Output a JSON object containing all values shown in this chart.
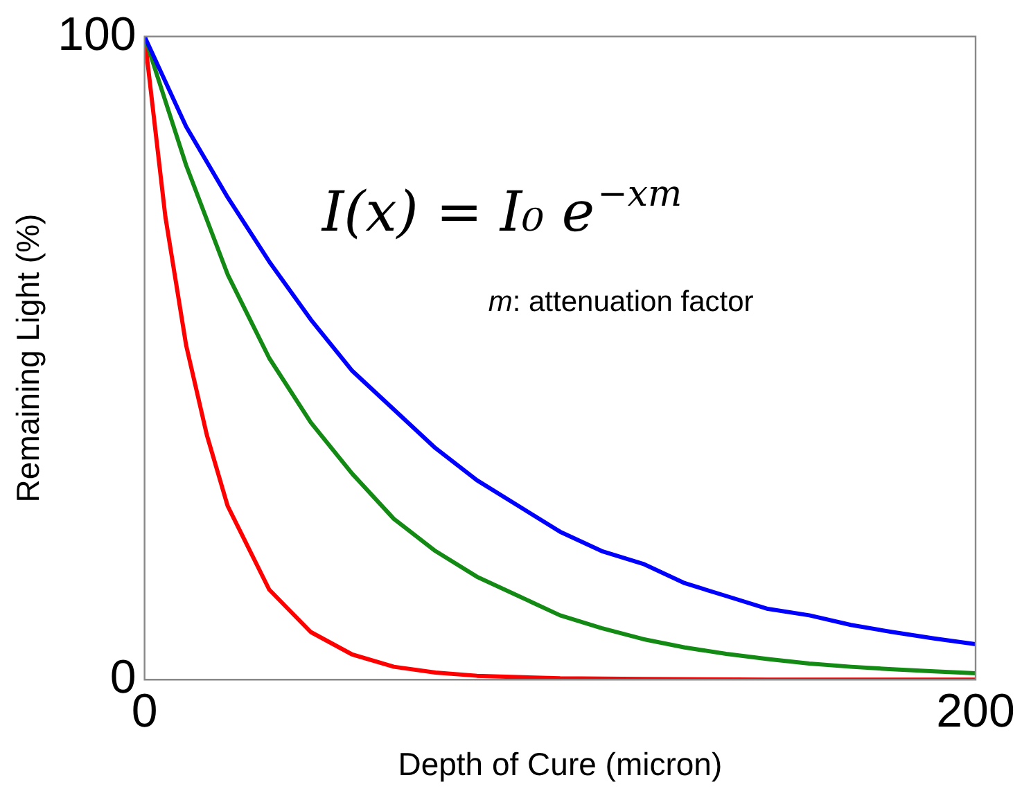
{
  "chart_data": {
    "type": "line",
    "xlabel": "Depth of Cure (micron)",
    "ylabel": "Remaining Light (%)",
    "annotations": [
      "I(x) = I₀ e$^{−xm}$",
      "m: attenuation factor"
    ],
    "xlim": [
      0,
      200
    ],
    "xticks": [
      0,
      200
    ],
    "ylim": [
      0,
      100
    ],
    "yticks": [
      0,
      100
    ],
    "legend": false,
    "marker": "none",
    "line_style": "solid",
    "series": [
      {
        "color": "#0000ff",
        "x": [
          0,
          10,
          20,
          30,
          40,
          50,
          60,
          70,
          80,
          90,
          100,
          110,
          120,
          130,
          140,
          150,
          160,
          170,
          180,
          190,
          200
        ],
        "values": [
          100,
          86,
          75,
          65,
          56,
          48,
          42,
          36,
          31,
          27,
          23,
          20,
          18,
          15,
          13,
          11,
          10,
          8.5,
          7.4,
          6.4,
          5.5
        ]
      },
      {
        "color": "#138a13",
        "x": [
          0,
          10,
          20,
          30,
          40,
          50,
          60,
          70,
          80,
          90,
          100,
          110,
          120,
          130,
          140,
          150,
          160,
          170,
          180,
          190,
          200
        ],
        "values": [
          100,
          80,
          63,
          50,
          40,
          32,
          25,
          20,
          16,
          13,
          10,
          8,
          6.3,
          5,
          4,
          3.2,
          2.5,
          2,
          1.6,
          1.3,
          1
        ]
      },
      {
        "color": "#ff0000",
        "x": [
          0,
          5,
          10,
          15,
          20,
          30,
          40,
          50,
          60,
          70,
          80,
          100,
          120,
          150,
          200
        ],
        "values": [
          100,
          72,
          52,
          38,
          27,
          14,
          7.4,
          3.9,
          2,
          1.1,
          0.6,
          0.2,
          0.1,
          0,
          0
        ]
      }
    ]
  }
}
